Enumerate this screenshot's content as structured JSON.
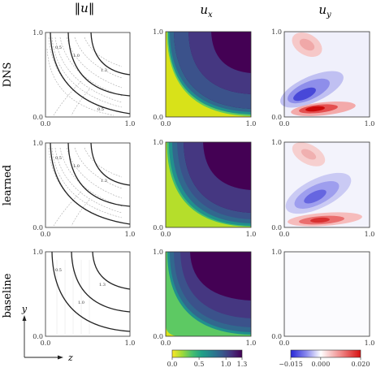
{
  "chart_data": {
    "type": "heatmap",
    "column_titles": [
      "‖u‖",
      "u",
      "u"
    ],
    "column_title_subscripts": [
      "",
      "x",
      "y"
    ],
    "row_labels": [
      "DNS",
      "learned",
      "baseline"
    ],
    "axis_ticks": [
      "0.0",
      "1.0"
    ],
    "contour_labels": {
      "dns": [
        "0.5",
        "1.0",
        "1.3",
        "0.5"
      ],
      "learned": [
        "0.5",
        "1.0",
        "1.3"
      ],
      "baseline": [
        "0.5",
        "1.0",
        "1.3"
      ]
    },
    "inset_axes": {
      "vertical": "y",
      "horizontal": "z"
    },
    "colorbars": [
      {
        "name": "u_x",
        "ticks": [
          "0.0",
          "0.5",
          "1.0",
          "1.3"
        ],
        "range": [
          0.0,
          1.3
        ],
        "colors": [
          "#fde725",
          "#a0da39",
          "#4ac16d",
          "#1fa187",
          "#277f8e",
          "#365c8d",
          "#46327e",
          "#440154"
        ]
      },
      {
        "name": "u_y",
        "ticks": [
          "−0.015",
          "0.000",
          "0.020"
        ],
        "range": [
          -0.015,
          0.02
        ],
        "colors": [
          "#2727d6",
          "#8888ee",
          "#ffffff",
          "#f08888",
          "#d61010"
        ]
      }
    ]
  }
}
